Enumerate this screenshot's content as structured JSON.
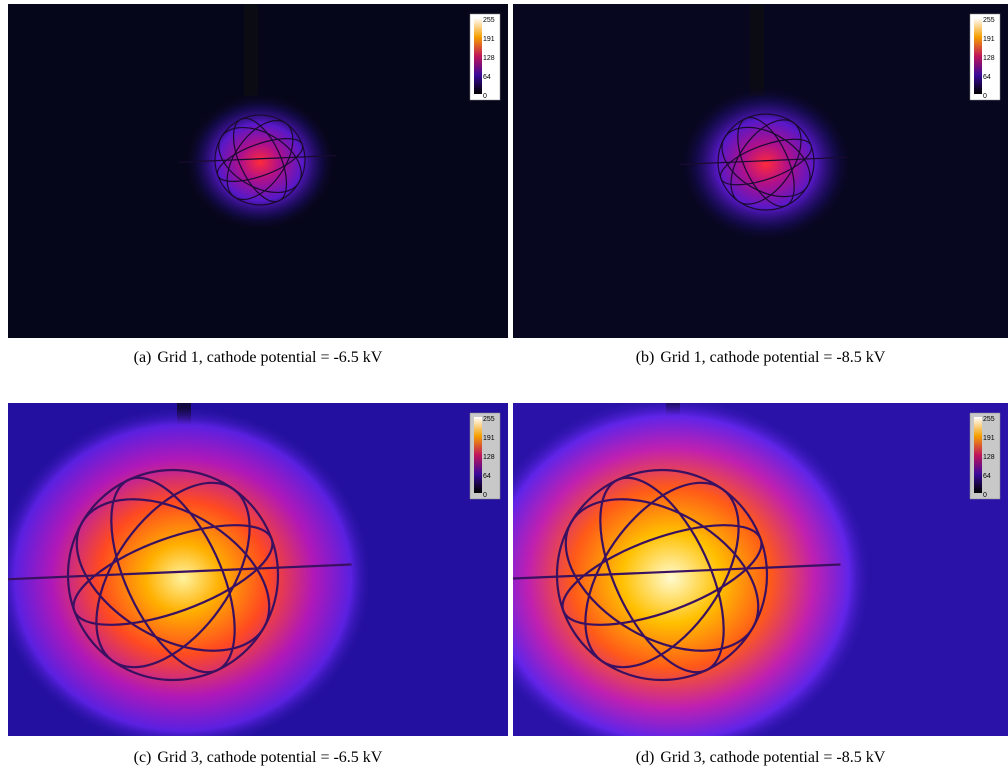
{
  "figure": {
    "panels": [
      {
        "label": "(a)",
        "caption": "Grid 1, cathode potential = -6.5 kV",
        "colorbar_ticks": [
          "255",
          "191",
          "128",
          "64",
          "0"
        ]
      },
      {
        "label": "(b)",
        "caption": "Grid 1, cathode potential = -8.5 kV",
        "colorbar_ticks": [
          "255",
          "191",
          "128",
          "64",
          "0"
        ]
      },
      {
        "label": "(c)",
        "caption": "Grid 3, cathode potential = -6.5 kV",
        "colorbar_ticks": [
          "255",
          "191",
          "128",
          "64",
          "0"
        ]
      },
      {
        "label": "(d)",
        "caption": "Grid 3, cathode potential = -8.5 kV",
        "colorbar_ticks": [
          "255",
          "191",
          "128",
          "64",
          "0"
        ]
      }
    ]
  }
}
